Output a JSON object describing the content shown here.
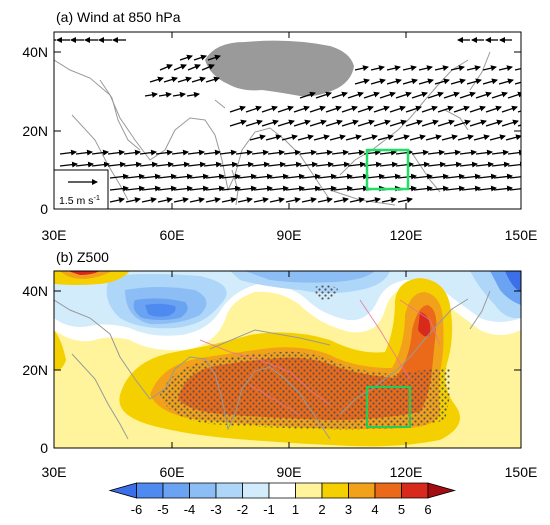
{
  "panel_a": {
    "title": "(a) Wind at 850 hPa",
    "y_ticks": [
      "40N",
      "20N",
      "0"
    ],
    "x_ticks": [
      "30E",
      "60E",
      "90E",
      "120E",
      "150E"
    ],
    "reference_vector_label": "1.5 m s",
    "reference_vector_exponent": "-1",
    "map_colors": {
      "coastline": "#9a9a9a",
      "plateau": "#9a9a9a",
      "vector": "#000000",
      "box": "#22dd66"
    }
  },
  "panel_b": {
    "title": "(b) Z500",
    "y_ticks": [
      "40N",
      "20N",
      "0"
    ],
    "x_ticks": [
      "30E",
      "60E",
      "90E",
      "120E",
      "150E"
    ],
    "box_color": "#22cc55"
  },
  "colorbar": {
    "labels": [
      "-6",
      "-5",
      "-4",
      "-3",
      "-2",
      "-1",
      "1",
      "2",
      "3",
      "4",
      "5",
      "6"
    ],
    "colors": [
      "#3a6fe8",
      "#4f8af0",
      "#6aa3f2",
      "#8cbdf5",
      "#aed6f8",
      "#d2ecfb",
      "#ffffff",
      "#fff49c",
      "#f5d000",
      "#f2a21a",
      "#ea6a1a",
      "#d82a1c",
      "#a30c10"
    ]
  }
}
